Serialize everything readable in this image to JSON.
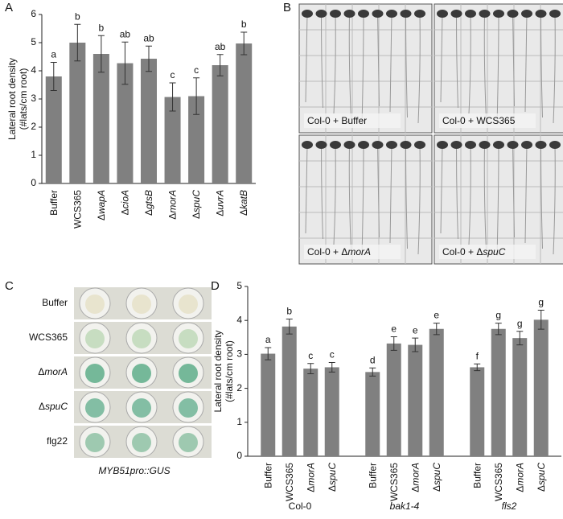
{
  "panels": [
    "A",
    "B",
    "C",
    "D"
  ],
  "chart_data": [
    {
      "type": "bar",
      "ylabel": [
        "Lateral root density",
        "(#lats/cm root)"
      ],
      "categories": [
        "Buffer",
        "WCS365",
        "ΔwapA",
        "ΔcioA",
        "ΔgtsB",
        "ΔmorA",
        "ΔspuC",
        "ΔuvrA",
        "ΔkatB"
      ],
      "values": [
        3.8,
        5.0,
        4.6,
        4.27,
        4.43,
        3.07,
        3.1,
        4.2,
        4.97
      ],
      "errors": [
        0.5,
        0.65,
        0.65,
        0.75,
        0.45,
        0.5,
        0.65,
        0.38,
        0.4
      ],
      "letters": [
        "a",
        "b",
        "b",
        "ab",
        "ab",
        "c",
        "c",
        "ab",
        "b"
      ],
      "color": "#808080",
      "ylim": [
        0,
        6
      ],
      "yticks": [
        0,
        1,
        2,
        3,
        4,
        5,
        6
      ]
    },
    {
      "type": "grouped_bar",
      "ylabel": [
        "Lateral root density",
        "(#lats/cm root)"
      ],
      "groups": [
        {
          "name": "Col-0",
          "italic": false,
          "categories": [
            "Buffer",
            "WCS365",
            "ΔmorA",
            "ΔspuC"
          ],
          "values": [
            3.02,
            3.82,
            2.58,
            2.62
          ],
          "errors": [
            0.18,
            0.22,
            0.15,
            0.14
          ],
          "letters": [
            "a",
            "b",
            "c",
            "c"
          ]
        },
        {
          "name": "bak1-4",
          "italic": true,
          "categories": [
            "Buffer",
            "WCS365",
            "ΔmorA",
            "ΔspuC"
          ],
          "values": [
            2.48,
            3.32,
            3.28,
            3.75
          ],
          "errors": [
            0.12,
            0.2,
            0.2,
            0.17
          ],
          "letters": [
            "d",
            "e",
            "e",
            "e"
          ]
        },
        {
          "name": "fls2",
          "italic": true,
          "categories": [
            "Buffer",
            "WCS365",
            "ΔmorA",
            "ΔspuC"
          ],
          "values": [
            2.62,
            3.75,
            3.48,
            4.02
          ],
          "errors": [
            0.1,
            0.17,
            0.2,
            0.28
          ],
          "letters": [
            "f",
            "g",
            "g",
            "g"
          ]
        }
      ],
      "color": "#808080",
      "ylim": [
        0,
        5
      ],
      "yticks": [
        0,
        1,
        2,
        3,
        4,
        5
      ]
    }
  ],
  "photos_b": {
    "captions": [
      "Col-0 + Buffer",
      "Col-0 + WCS365",
      "Col-0 + ΔmorA",
      "Col-0 + ΔspuC"
    ]
  },
  "photos_c": {
    "rows": [
      "Buffer",
      "WCS365",
      "ΔmorA",
      "ΔspuC",
      "flg22"
    ],
    "caption": "MYB51pro::GUS"
  }
}
